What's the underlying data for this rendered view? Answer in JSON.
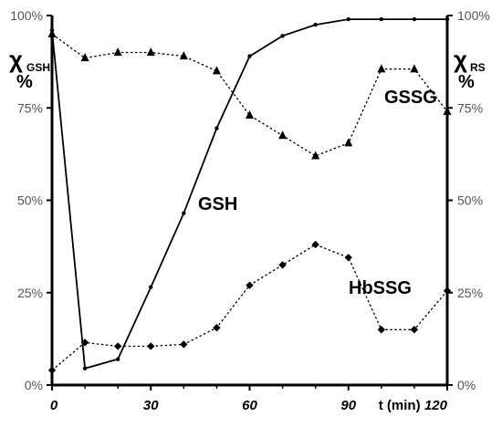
{
  "chart_data": {
    "type": "line",
    "x": [
      0,
      10,
      20,
      30,
      40,
      50,
      60,
      70,
      80,
      90,
      100,
      110,
      120
    ],
    "xlim": [
      0,
      120
    ],
    "ylim": [
      0,
      100
    ],
    "x_ticks": [
      "0",
      "30",
      "60",
      "90",
      "120"
    ],
    "xlabel": "t (min)",
    "y_ticks_left": [
      "0%",
      "25%",
      "50%",
      "75%",
      "100%"
    ],
    "y_ticks_right": [
      "0%",
      "25%",
      "50%",
      "75%",
      "100%"
    ],
    "ylabel_left": {
      "main": "χ",
      "sub": "GSH",
      "unit": "%"
    },
    "ylabel_right": {
      "main": "χ",
      "sub": "RS",
      "unit": "%"
    },
    "grid": false,
    "series": [
      {
        "name": "GSH",
        "axis": "left",
        "style": "solid",
        "marker": "dot",
        "x": [
          0,
          10,
          20,
          30,
          40,
          50,
          60,
          70,
          80,
          90,
          100,
          110,
          120
        ],
        "values": [
          96,
          4.5,
          7,
          26.5,
          46.5,
          69.5,
          89,
          94.5,
          97.5,
          99,
          99,
          99,
          99
        ]
      },
      {
        "name": "GSSG",
        "axis": "right",
        "style": "dotted",
        "marker": "triangle",
        "x": [
          0,
          10,
          20,
          30,
          40,
          50,
          60,
          70,
          80,
          90,
          100,
          110,
          120
        ],
        "values": [
          95,
          88.5,
          90,
          90,
          89,
          85,
          73,
          67.5,
          62,
          65.5,
          85.5,
          85.5,
          74
        ]
      },
      {
        "name": "HbSSG",
        "axis": "right",
        "style": "dotted",
        "marker": "diamond",
        "x": [
          0,
          10,
          20,
          30,
          40,
          50,
          60,
          70,
          80,
          90,
          100,
          110,
          120
        ],
        "values": [
          4,
          11.5,
          10.5,
          10.5,
          11,
          15.5,
          27,
          32.5,
          38,
          34.5,
          15,
          15,
          25.5
        ]
      }
    ]
  }
}
